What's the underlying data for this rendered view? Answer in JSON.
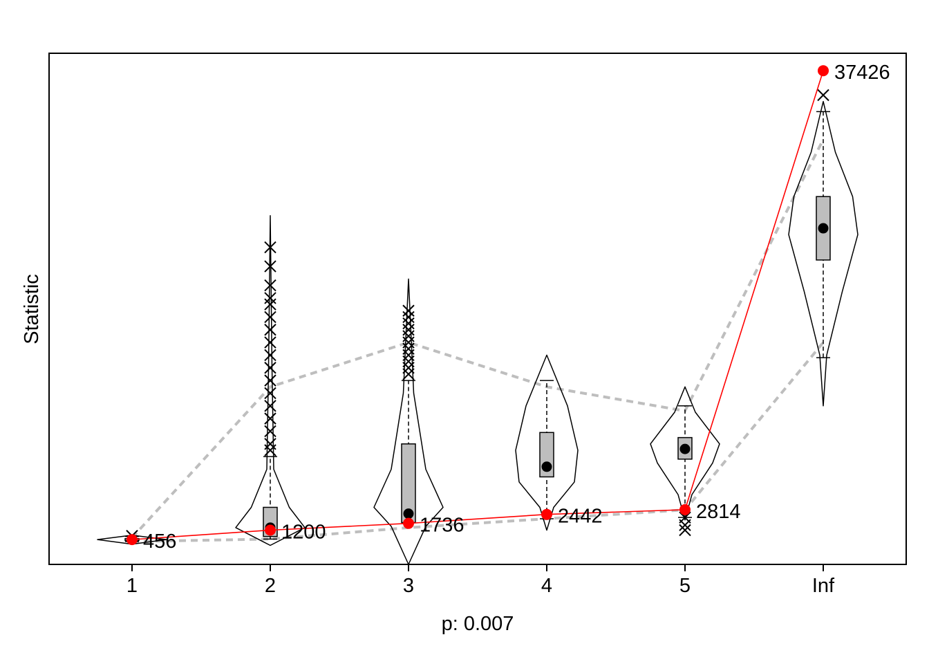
{
  "chart_data": {
    "type": "violin",
    "xlabel": "p: 0.007",
    "ylabel": "Statistic",
    "categories": [
      "1",
      "2",
      "3",
      "4",
      "5",
      "Inf"
    ],
    "y_tick_labels_shown": false,
    "grid": false,
    "legend": "none",
    "colors": {
      "observed": "#ff0000",
      "box_fill": "#bebebe",
      "quantile_band": "#bebebe",
      "outline": "#000000"
    },
    "observed_series": {
      "values": [
        456,
        1200,
        1736,
        2442,
        2814,
        37426
      ],
      "labels": [
        "456",
        "1200",
        "1736",
        "2442",
        "2814",
        "37426"
      ]
    },
    "distributions": [
      {
        "category": "1",
        "median": 456,
        "q1": 380,
        "q3": 530,
        "whisker_low": 300,
        "whisker_high": 700,
        "band_low": 300,
        "band_high": 600,
        "outliers": [
          750
        ],
        "violin": [
          [
            100,
            0
          ],
          [
            456,
            1.0
          ],
          [
            800,
            0
          ]
        ]
      },
      {
        "category": "2",
        "median": 1400,
        "q1": 700,
        "q3": 3000,
        "whisker_low": 500,
        "whisker_high": 7000,
        "band_low": 500,
        "band_high": 12500,
        "outliers": [
          7500,
          8000,
          9000,
          10000,
          11000,
          12000,
          13000,
          14000,
          15000,
          16000,
          17000,
          18000,
          19000,
          19500,
          20500,
          22000,
          23500
        ],
        "violin": [
          [
            0,
            0
          ],
          [
            1400,
            1.0
          ],
          [
            3000,
            0.55
          ],
          [
            6000,
            0.1
          ],
          [
            14000,
            0.05
          ],
          [
            26000,
            0
          ]
        ]
      },
      {
        "category": "3",
        "median": 2500,
        "q1": 1800,
        "q3": 8000,
        "whisker_low": 1800,
        "whisker_high": 13000,
        "band_low": 1400,
        "band_high": 16000,
        "outliers": [
          13500,
          14000,
          14500,
          15000,
          15500,
          16000,
          16500,
          17000,
          17500,
          18000,
          18500
        ],
        "violin": [
          [
            -1500,
            0
          ],
          [
            1500,
            0.5
          ],
          [
            3000,
            1.0
          ],
          [
            6000,
            0.5
          ],
          [
            12000,
            0.15
          ],
          [
            21000,
            0
          ]
        ]
      },
      {
        "category": "4",
        "median": 6200,
        "q1": 5400,
        "q3": 8900,
        "whisker_low": 2100,
        "whisker_high": 13000,
        "band_low": 2100,
        "band_high": 12500,
        "outliers": [],
        "violin": [
          [
            1200,
            0
          ],
          [
            3000,
            0.2
          ],
          [
            5000,
            0.8
          ],
          [
            7500,
            0.9
          ],
          [
            11000,
            0.6
          ],
          [
            15000,
            0
          ]
        ]
      },
      {
        "category": "5",
        "median": 7600,
        "q1": 6800,
        "q3": 8500,
        "whisker_low": 2200,
        "whisker_high": 11000,
        "band_low": 2800,
        "band_high": 10600,
        "outliers": [
          1200,
          1600,
          2200
        ],
        "violin": [
          [
            2000,
            0
          ],
          [
            4000,
            0.2
          ],
          [
            6500,
            0.8
          ],
          [
            8000,
            1.0
          ],
          [
            10500,
            0.3
          ],
          [
            12500,
            0
          ]
        ]
      },
      {
        "category": "Inf",
        "median": 25000,
        "q1": 22500,
        "q3": 27500,
        "whisker_low": 14800,
        "whisker_high": 34200,
        "band_low": 16000,
        "band_high": 32000,
        "outliers": [
          35500
        ],
        "violin": [
          [
            11000,
            0
          ],
          [
            15000,
            0.1
          ],
          [
            20000,
            0.55
          ],
          [
            24500,
            1.0
          ],
          [
            27500,
            0.85
          ],
          [
            31000,
            0.35
          ],
          [
            35000,
            0
          ]
        ]
      }
    ]
  }
}
